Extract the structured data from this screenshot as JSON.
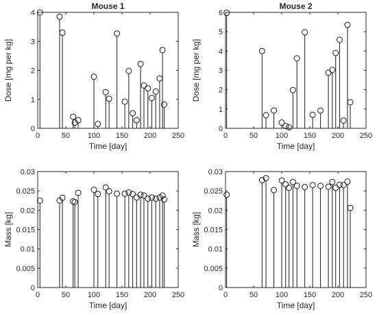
{
  "chart_data": [
    {
      "type": "stem",
      "title": "Mouse 1",
      "xlabel": "Time [day]",
      "ylabel": "Dose [mg per kg]",
      "xlim": [
        0,
        250
      ],
      "ylim": [
        0,
        4
      ],
      "xticks": [
        "0",
        "50",
        "100",
        "150",
        "200",
        "250"
      ],
      "yticks": [
        "0",
        "1",
        "2",
        "3",
        "4"
      ],
      "points": [
        {
          "x": 4,
          "y": 4.0
        },
        {
          "x": 39,
          "y": 3.85
        },
        {
          "x": 44,
          "y": 3.3
        },
        {
          "x": 63,
          "y": 0.4
        },
        {
          "x": 66,
          "y": 0.2
        },
        {
          "x": 72,
          "y": 0.28
        },
        {
          "x": 100,
          "y": 1.78
        },
        {
          "x": 107,
          "y": 0.15
        },
        {
          "x": 121,
          "y": 1.25
        },
        {
          "x": 127,
          "y": 1.02
        },
        {
          "x": 141,
          "y": 3.27
        },
        {
          "x": 155,
          "y": 0.92
        },
        {
          "x": 162,
          "y": 1.98
        },
        {
          "x": 169,
          "y": 0.52
        },
        {
          "x": 176,
          "y": 0.28
        },
        {
          "x": 183,
          "y": 2.22
        },
        {
          "x": 189,
          "y": 1.48
        },
        {
          "x": 196,
          "y": 1.38
        },
        {
          "x": 203,
          "y": 1.05
        },
        {
          "x": 210,
          "y": 1.27
        },
        {
          "x": 217,
          "y": 1.72
        },
        {
          "x": 222,
          "y": 2.7
        },
        {
          "x": 225,
          "y": 0.82
        }
      ]
    },
    {
      "type": "stem",
      "title": "Mouse 2",
      "xlabel": "Time [day]",
      "ylabel": "Dose [mg per kg]",
      "xlim": [
        0,
        250
      ],
      "ylim": [
        0,
        6
      ],
      "xticks": [
        "0",
        "50",
        "100",
        "150",
        "200",
        "250"
      ],
      "yticks": [
        "0",
        "1",
        "2",
        "3",
        "4",
        "5",
        "6"
      ],
      "points": [
        {
          "x": 2,
          "y": 5.98
        },
        {
          "x": 65,
          "y": 4.0
        },
        {
          "x": 72,
          "y": 0.68
        },
        {
          "x": 86,
          "y": 0.92
        },
        {
          "x": 100,
          "y": 0.3
        },
        {
          "x": 107,
          "y": 0.12
        },
        {
          "x": 113,
          "y": 0.05
        },
        {
          "x": 120,
          "y": 1.98
        },
        {
          "x": 127,
          "y": 3.62
        },
        {
          "x": 141,
          "y": 4.97
        },
        {
          "x": 155,
          "y": 0.7
        },
        {
          "x": 169,
          "y": 0.92
        },
        {
          "x": 183,
          "y": 2.88
        },
        {
          "x": 190,
          "y": 3.02
        },
        {
          "x": 196,
          "y": 3.9
        },
        {
          "x": 203,
          "y": 4.58
        },
        {
          "x": 210,
          "y": 0.4
        },
        {
          "x": 217,
          "y": 5.35
        },
        {
          "x": 222,
          "y": 1.35
        }
      ]
    },
    {
      "type": "stem",
      "title": "",
      "xlabel": "Time [day]",
      "ylabel": "Mass [kg]",
      "xlim": [
        0,
        250
      ],
      "ylim": [
        0,
        0.03
      ],
      "xticks": [
        "0",
        "50",
        "100",
        "150",
        "200",
        "250"
      ],
      "yticks": [
        "0",
        "0.005",
        "0.01",
        "0.015",
        "0.02",
        "0.025",
        "0.03"
      ],
      "points": [
        {
          "x": 4,
          "y": 0.0225
        },
        {
          "x": 39,
          "y": 0.0225
        },
        {
          "x": 44,
          "y": 0.0232
        },
        {
          "x": 63,
          "y": 0.0223
        },
        {
          "x": 66,
          "y": 0.0221
        },
        {
          "x": 72,
          "y": 0.0245
        },
        {
          "x": 100,
          "y": 0.0253
        },
        {
          "x": 107,
          "y": 0.0242
        },
        {
          "x": 121,
          "y": 0.0259
        },
        {
          "x": 127,
          "y": 0.0249
        },
        {
          "x": 141,
          "y": 0.0243
        },
        {
          "x": 155,
          "y": 0.0243
        },
        {
          "x": 162,
          "y": 0.0246
        },
        {
          "x": 169,
          "y": 0.0242
        },
        {
          "x": 176,
          "y": 0.0233
        },
        {
          "x": 183,
          "y": 0.024
        },
        {
          "x": 189,
          "y": 0.0238
        },
        {
          "x": 196,
          "y": 0.023
        },
        {
          "x": 203,
          "y": 0.0233
        },
        {
          "x": 210,
          "y": 0.023
        },
        {
          "x": 217,
          "y": 0.0233
        },
        {
          "x": 222,
          "y": 0.0238
        },
        {
          "x": 225,
          "y": 0.0228
        }
      ]
    },
    {
      "type": "stem",
      "title": "",
      "xlabel": "Time [day]",
      "ylabel": "Mass [kg]",
      "xlim": [
        0,
        250
      ],
      "ylim": [
        0,
        0.03
      ],
      "xticks": [
        "0",
        "50",
        "100",
        "150",
        "200",
        "250"
      ],
      "yticks": [
        "0",
        "0.005",
        "0.01",
        "0.015",
        "0.02",
        "0.025",
        "0.03"
      ],
      "points": [
        {
          "x": 2,
          "y": 0.024
        },
        {
          "x": 65,
          "y": 0.0278
        },
        {
          "x": 72,
          "y": 0.0283
        },
        {
          "x": 86,
          "y": 0.0252
        },
        {
          "x": 100,
          "y": 0.0277
        },
        {
          "x": 107,
          "y": 0.0267
        },
        {
          "x": 113,
          "y": 0.0258
        },
        {
          "x": 120,
          "y": 0.0273
        },
        {
          "x": 127,
          "y": 0.0263
        },
        {
          "x": 141,
          "y": 0.026
        },
        {
          "x": 155,
          "y": 0.0265
        },
        {
          "x": 169,
          "y": 0.0263
        },
        {
          "x": 183,
          "y": 0.0261
        },
        {
          "x": 190,
          "y": 0.0273
        },
        {
          "x": 196,
          "y": 0.0258
        },
        {
          "x": 203,
          "y": 0.0266
        },
        {
          "x": 210,
          "y": 0.0265
        },
        {
          "x": 217,
          "y": 0.0274
        },
        {
          "x": 222,
          "y": 0.0206
        }
      ]
    }
  ]
}
